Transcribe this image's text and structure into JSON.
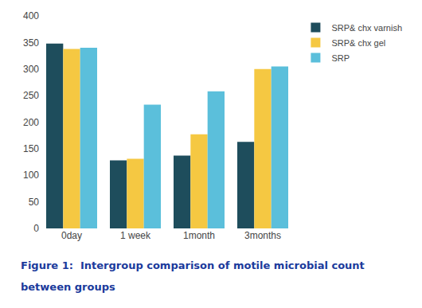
{
  "chart_data": {
    "type": "bar",
    "title": "Figure 1:  Intergroup comparison of motile microbial count",
    "subtitle": "between groups",
    "categories": [
      "0day",
      "1 week",
      "1month",
      "3months"
    ],
    "series": [
      {
        "name": "SRP& chx varnish",
        "color": "#1e4d5c",
        "values": [
          348,
          128,
          137,
          163
        ]
      },
      {
        "name": "SRP& chx gel",
        "color": "#f5c842",
        "values": [
          338,
          131,
          177,
          300
        ]
      },
      {
        "name": "SRP",
        "color": "#5bbfdb",
        "values": [
          340,
          233,
          258,
          305
        ]
      }
    ],
    "ylim": [
      0,
      400
    ],
    "yticks": [
      0,
      50,
      100,
      150,
      200,
      250,
      300,
      350,
      400
    ],
    "grid": false,
    "legend": "right"
  }
}
